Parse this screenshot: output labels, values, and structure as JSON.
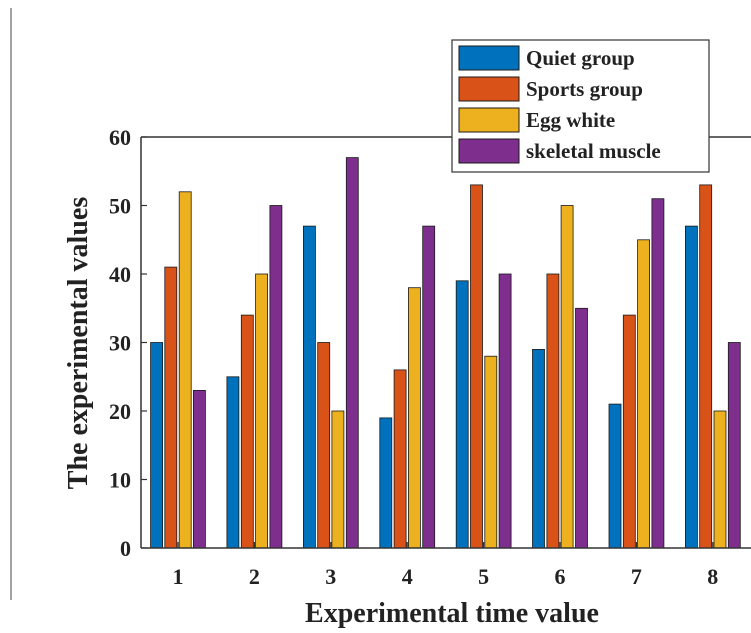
{
  "chart_data": {
    "type": "bar",
    "xlabel": "Experimental time value",
    "ylabel": "The experimental values",
    "ylim": [
      0,
      60
    ],
    "yticks": [
      "0",
      "10",
      "20",
      "30",
      "40",
      "50",
      "60"
    ],
    "categories": [
      "1",
      "2",
      "3",
      "4",
      "5",
      "6",
      "7",
      "8"
    ],
    "series": [
      {
        "name": "Quiet group",
        "color": "#0072BD",
        "values": [
          30,
          25,
          47,
          19,
          39,
          29,
          21,
          47
        ]
      },
      {
        "name": "Sports group",
        "color": "#D95319",
        "values": [
          41,
          34,
          30,
          26,
          53,
          40,
          34,
          53
        ]
      },
      {
        "name": "Egg white",
        "color": "#EDB120",
        "values": [
          52,
          40,
          20,
          38,
          28,
          50,
          45,
          20
        ]
      },
      {
        "name": "skeletal muscle",
        "color": "#7E2F8E",
        "values": [
          23,
          50,
          57,
          47,
          40,
          35,
          51,
          30
        ]
      }
    ],
    "grid": false,
    "legend": "top-right"
  }
}
